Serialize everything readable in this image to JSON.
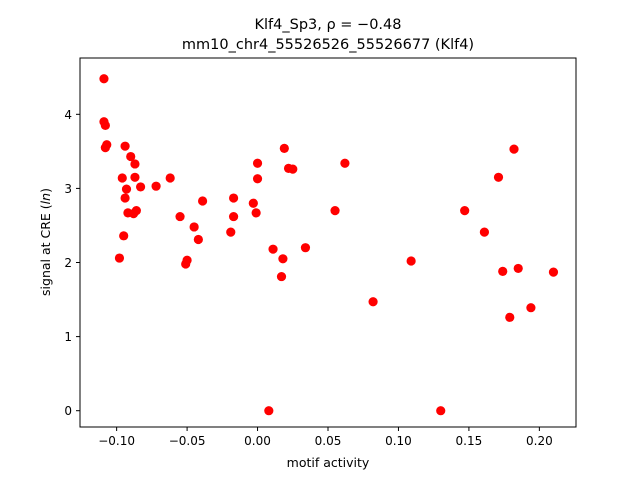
{
  "chart_data": {
    "type": "scatter",
    "title_line1": "Klf4_Sp3, ρ = −0.48",
    "title_line2": "mm10_chr4_55526526_55526677 (Klf4)",
    "xlabel": "motif activity",
    "ylabel": "signal at CRE (ln)",
    "xlim": [
      -0.126,
      0.226
    ],
    "ylim": [
      -0.22,
      4.76
    ],
    "xticks": [
      -0.1,
      -0.05,
      0.0,
      0.05,
      0.1,
      0.15,
      0.2
    ],
    "xtick_labels": [
      "−0.10",
      "−0.05",
      "0.00",
      "0.05",
      "0.10",
      "0.15",
      "0.20"
    ],
    "yticks": [
      0,
      1,
      2,
      3,
      4
    ],
    "ytick_labels": [
      "0",
      "1",
      "2",
      "3",
      "4"
    ],
    "marker_color": "#ff0000",
    "grid": false,
    "points": [
      {
        "x": -0.109,
        "y": 4.48
      },
      {
        "x": -0.109,
        "y": 3.9
      },
      {
        "x": -0.108,
        "y": 3.85
      },
      {
        "x": -0.108,
        "y": 3.55
      },
      {
        "x": -0.107,
        "y": 3.59
      },
      {
        "x": -0.094,
        "y": 3.57
      },
      {
        "x": -0.09,
        "y": 3.43
      },
      {
        "x": -0.087,
        "y": 3.33
      },
      {
        "x": -0.096,
        "y": 3.14
      },
      {
        "x": -0.087,
        "y": 3.15
      },
      {
        "x": -0.093,
        "y": 2.99
      },
      {
        "x": -0.083,
        "y": 3.02
      },
      {
        "x": -0.094,
        "y": 2.87
      },
      {
        "x": -0.092,
        "y": 2.67
      },
      {
        "x": -0.088,
        "y": 2.66
      },
      {
        "x": -0.086,
        "y": 2.7
      },
      {
        "x": -0.095,
        "y": 2.36
      },
      {
        "x": -0.098,
        "y": 2.06
      },
      {
        "x": -0.072,
        "y": 3.03
      },
      {
        "x": -0.062,
        "y": 3.14
      },
      {
        "x": -0.055,
        "y": 2.62
      },
      {
        "x": -0.039,
        "y": 2.83
      },
      {
        "x": -0.045,
        "y": 2.48
      },
      {
        "x": -0.042,
        "y": 2.31
      },
      {
        "x": -0.05,
        "y": 2.03
      },
      {
        "x": -0.051,
        "y": 1.98
      },
      {
        "x": -0.017,
        "y": 2.87
      },
      {
        "x": -0.017,
        "y": 2.62
      },
      {
        "x": -0.019,
        "y": 2.41
      },
      {
        "x": -0.003,
        "y": 2.8
      },
      {
        "x": -0.001,
        "y": 2.67
      },
      {
        "x": 0.0,
        "y": 3.34
      },
      {
        "x": 0.0,
        "y": 3.13
      },
      {
        "x": 0.019,
        "y": 3.54
      },
      {
        "x": 0.022,
        "y": 3.27
      },
      {
        "x": 0.025,
        "y": 3.26
      },
      {
        "x": 0.011,
        "y": 2.18
      },
      {
        "x": 0.018,
        "y": 2.05
      },
      {
        "x": 0.017,
        "y": 1.81
      },
      {
        "x": 0.034,
        "y": 2.2
      },
      {
        "x": 0.008,
        "y": 0.0
      },
      {
        "x": 0.062,
        "y": 3.34
      },
      {
        "x": 0.055,
        "y": 2.7
      },
      {
        "x": 0.082,
        "y": 1.47
      },
      {
        "x": 0.109,
        "y": 2.02
      },
      {
        "x": 0.13,
        "y": 0.0
      },
      {
        "x": 0.147,
        "y": 2.7
      },
      {
        "x": 0.161,
        "y": 2.41
      },
      {
        "x": 0.171,
        "y": 3.15
      },
      {
        "x": 0.182,
        "y": 3.53
      },
      {
        "x": 0.174,
        "y": 1.88
      },
      {
        "x": 0.185,
        "y": 1.92
      },
      {
        "x": 0.179,
        "y": 1.26
      },
      {
        "x": 0.194,
        "y": 1.39
      },
      {
        "x": 0.21,
        "y": 1.87
      }
    ]
  }
}
